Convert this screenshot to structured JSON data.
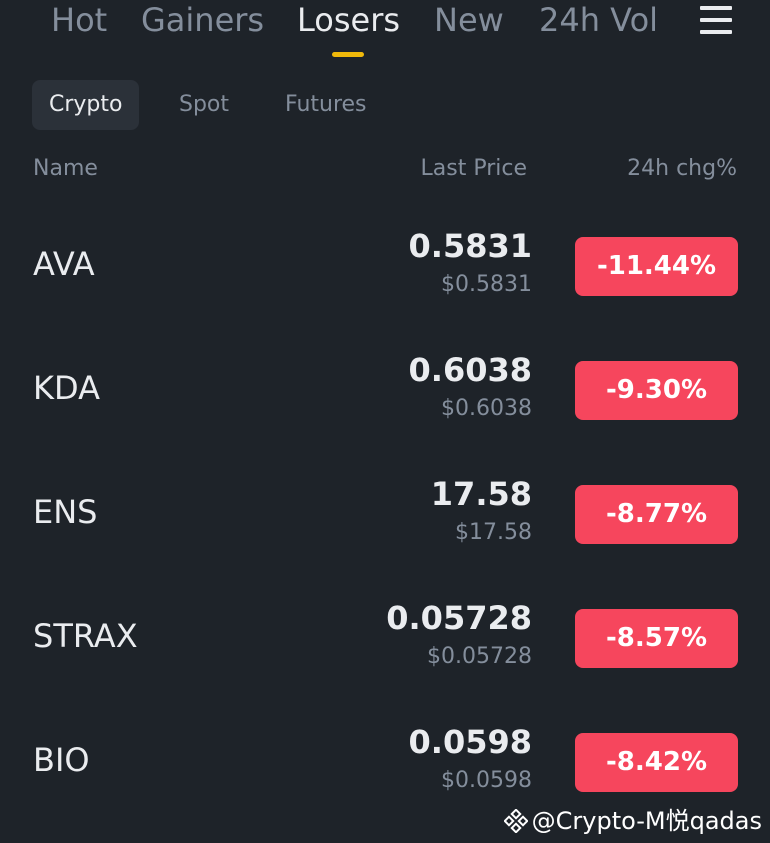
{
  "top_tabs": [
    {
      "label": "Hot"
    },
    {
      "label": "Gainers"
    },
    {
      "label": "Losers"
    },
    {
      "label": "New"
    },
    {
      "label": "24h Vol"
    }
  ],
  "top_tabs_active": "Losers",
  "menu_icon": "hamburger-menu-icon",
  "sub_tabs": [
    {
      "label": "Crypto"
    },
    {
      "label": "Spot"
    },
    {
      "label": "Futures"
    }
  ],
  "sub_tabs_active": "Crypto",
  "columns": {
    "name": "Name",
    "last_price": "Last Price",
    "change": "24h chg%"
  },
  "rows": [
    {
      "symbol": "AVA",
      "price": "0.5831",
      "fiat": "$0.5831",
      "change": "-11.44%"
    },
    {
      "symbol": "KDA",
      "price": "0.6038",
      "fiat": "$0.6038",
      "change": "-9.30%"
    },
    {
      "symbol": "ENS",
      "price": "17.58",
      "fiat": "$17.58",
      "change": "-8.77%"
    },
    {
      "symbol": "STRAX",
      "price": "0.05728",
      "fiat": "$0.05728",
      "change": "-8.57%"
    },
    {
      "symbol": "BIO",
      "price": "0.0598",
      "fiat": "$0.0598",
      "change": "-8.42%"
    }
  ],
  "watermark": "@Crypto-M悦qadas",
  "colors": {
    "background": "#1e2329",
    "accent": "#f0b90b",
    "negative": "#f6465d",
    "text_primary": "#eaecef",
    "text_secondary": "#848e9c",
    "chip_background": "#2b3139"
  }
}
